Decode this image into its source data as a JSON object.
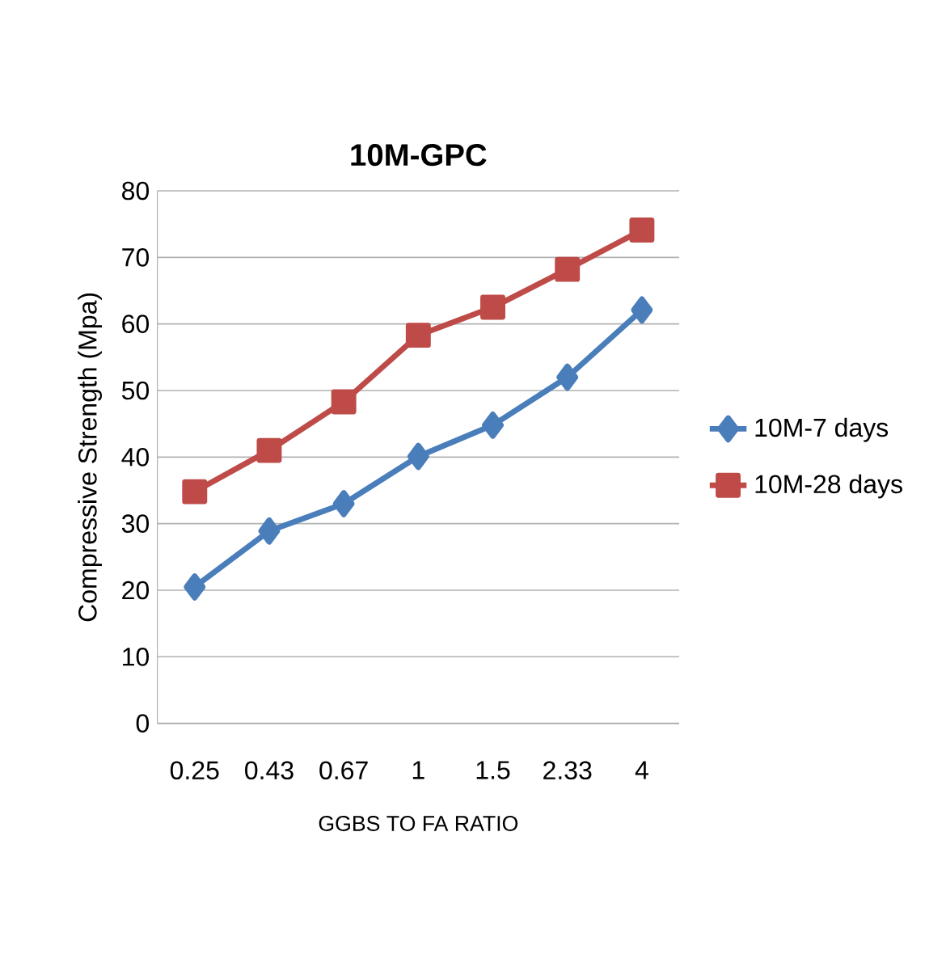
{
  "chart_data": {
    "type": "line",
    "title": "**10M-GPC**",
    "xlabel": "GGBS TO FA RATIO",
    "ylabel": "Compressive Strength (Mpa)",
    "categories": [
      "0.25",
      "0.43",
      "0.67",
      "1",
      "1.5",
      "2.33",
      "4"
    ],
    "series": [
      {
        "name": "10M-7 days",
        "color": "#4a7ebb",
        "marker": "diamond",
        "values": [
          20.5,
          28.9,
          33.0,
          40.1,
          44.8,
          52.0,
          62.1
        ]
      },
      {
        "name": "10M-28 days",
        "color": "#be4b48",
        "marker": "square",
        "values": [
          34.8,
          41.0,
          48.3,
          58.3,
          62.5,
          68.2,
          74.1
        ]
      }
    ],
    "ylim": [
      0,
      80
    ],
    "yticks": [
      0,
      10,
      20,
      30,
      40,
      50,
      60,
      70,
      80
    ],
    "grid": "y",
    "legend": "right"
  }
}
